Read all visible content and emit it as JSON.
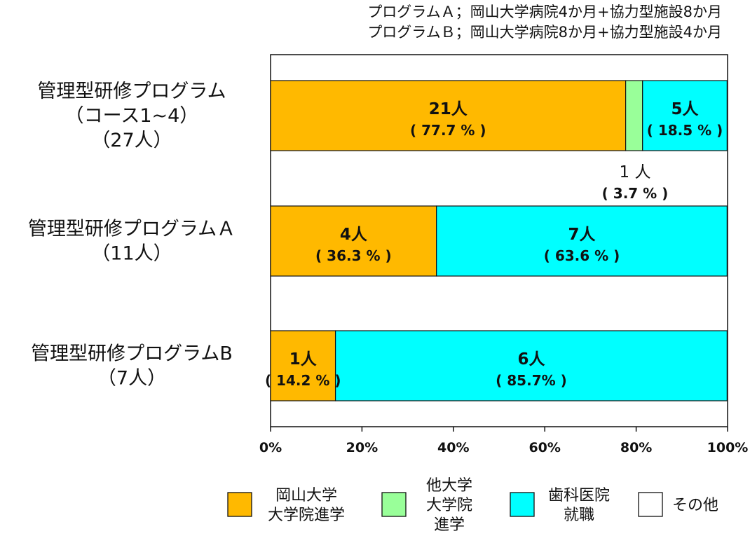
{
  "notes": [
    "プログラムＡ；岡山大学病院4か月+協力型施設8か月",
    "プログラムＢ；岡山大学病院8か月+協力型施設4か月"
  ],
  "colors": {
    "okayama": "#FFB900",
    "other_univ": "#99FF99",
    "dental": "#00FFFF",
    "other": "#FFFFFF"
  },
  "chart_data": {
    "type": "bar",
    "orientation": "horizontal",
    "stacked": "percent",
    "xlim": [
      0,
      100
    ],
    "x_ticks": [
      "0%",
      "20%",
      "40%",
      "60%",
      "80%",
      "100%"
    ],
    "categories": [
      [
        "管理型研修プログラム",
        "（コース1~4）",
        "（27人）"
      ],
      [
        "管理型研修プログラムＡ",
        "（11人）"
      ],
      [
        "管理型研修プログラムB",
        "（7人）"
      ]
    ],
    "series": [
      {
        "key": "okayama",
        "name": "岡山大学\n大学院進学",
        "values": [
          77.7,
          36.3,
          14.2
        ]
      },
      {
        "key": "other_univ",
        "name": "他大学\n大学院\n進学",
        "values": [
          3.7,
          0,
          0
        ]
      },
      {
        "key": "dental",
        "name": "歯科医院\n就職",
        "values": [
          18.5,
          63.6,
          85.7
        ]
      },
      {
        "key": "other",
        "name": "その他",
        "values": [
          0,
          0,
          0
        ]
      }
    ],
    "data_labels": [
      [
        {
          "count": "21人",
          "pct": "( 77.7 % )",
          "series": 0
        },
        {
          "count": "1 人",
          "pct": "( 3.7 % )",
          "series": 1,
          "outside": true
        },
        {
          "count": "5人",
          "pct": "( 18.5 % )",
          "series": 2
        }
      ],
      [
        {
          "count": "4人",
          "pct": "( 36.3 % )",
          "series": 0
        },
        {
          "count": "7人",
          "pct": "( 63.6 % )",
          "series": 2
        }
      ],
      [
        {
          "count": "1人",
          "pct": "( 14.2 % )",
          "series": 0
        },
        {
          "count": "6人",
          "pct": "( 85.7% )",
          "series": 2
        }
      ]
    ],
    "legend_position": "bottom",
    "grid": false
  }
}
